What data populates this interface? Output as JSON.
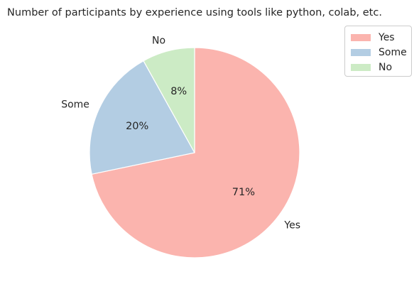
{
  "chart_data": {
    "type": "pie",
    "title": "Number of participants by experience using tools like python, colab, etc.",
    "categories": [
      "Yes",
      "Some",
      "No"
    ],
    "values": [
      71,
      20,
      8
    ],
    "percent_labels": [
      "71%",
      "20%",
      "8%"
    ],
    "colors": [
      "#fbb4ae",
      "#b3cde3",
      "#ccebc5"
    ],
    "start_angle_deg": 90,
    "direction": "clockwise",
    "legend_placement": "top-right",
    "legend": [
      "Yes",
      "Some",
      "No"
    ]
  }
}
